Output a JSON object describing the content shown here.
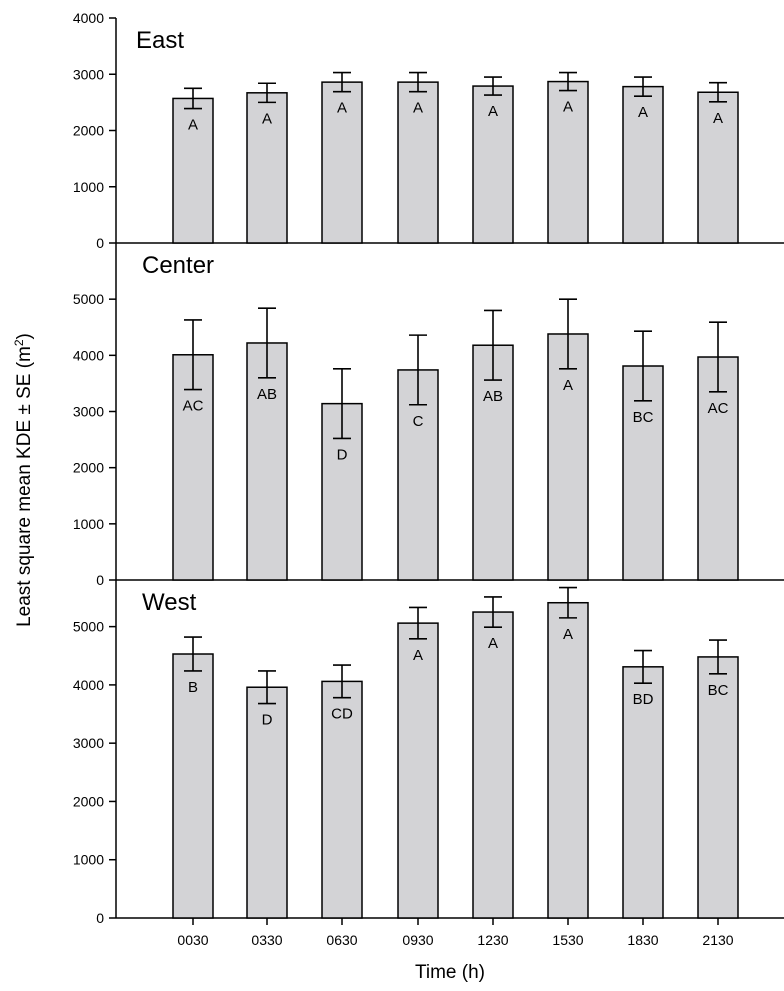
{
  "chart_data": [
    {
      "type": "bar",
      "title": "East",
      "categories": [
        "0030",
        "0330",
        "0630",
        "0930",
        "1230",
        "1530",
        "1830",
        "2130"
      ],
      "values": [
        2570,
        2670,
        2860,
        2860,
        2790,
        2870,
        2780,
        2680
      ],
      "errors": [
        180,
        170,
        170,
        170,
        160,
        160,
        170,
        170
      ],
      "letters": [
        "A",
        "A",
        "A",
        "A",
        "A",
        "A",
        "A",
        "A"
      ],
      "ylim": [
        0,
        4000
      ],
      "yticks": [
        0,
        1000,
        2000,
        3000,
        4000
      ],
      "yticks_labeled": [
        "0",
        "1000",
        "2000",
        "3000",
        "4000"
      ]
    },
    {
      "type": "bar",
      "title": "Center",
      "categories": [
        "0030",
        "0330",
        "0630",
        "0930",
        "1230",
        "1530",
        "1830",
        "2130"
      ],
      "values": [
        4010,
        4220,
        3140,
        3740,
        4180,
        4380,
        3810,
        3970
      ],
      "errors": [
        620,
        620,
        620,
        620,
        620,
        620,
        620,
        620
      ],
      "letters": [
        "AC",
        "AB",
        "D",
        "C",
        "AB",
        "A",
        "BC",
        "AC"
      ],
      "ylim": [
        0,
        6000
      ],
      "yticks": [
        0,
        1000,
        2000,
        3000,
        4000,
        5000
      ],
      "yticks_labeled": [
        "0",
        "1000",
        "2000",
        "3000",
        "4000",
        "5000"
      ]
    },
    {
      "type": "bar",
      "title": "West",
      "categories": [
        "0030",
        "0330",
        "0630",
        "0930",
        "1230",
        "1530",
        "1830",
        "2130"
      ],
      "values": [
        4530,
        3960,
        4060,
        5060,
        5250,
        5410,
        4310,
        4480
      ],
      "errors": [
        290,
        280,
        280,
        270,
        260,
        260,
        280,
        290
      ],
      "letters": [
        "B",
        "D",
        "CD",
        "A",
        "A",
        "A",
        "BD",
        "BC"
      ],
      "ylim": [
        0,
        5800
      ],
      "yticks": [
        0,
        1000,
        2000,
        3000,
        4000,
        5000
      ],
      "yticks_labeled": [
        "0",
        "1000",
        "2000",
        "3000",
        "4000",
        "5000"
      ]
    }
  ],
  "axes": {
    "ylabel": "Least square mean KDE ± SE (m",
    "ylabel_sup": "2",
    "ylabel_close": ")",
    "xlabel": "Time (h)"
  }
}
